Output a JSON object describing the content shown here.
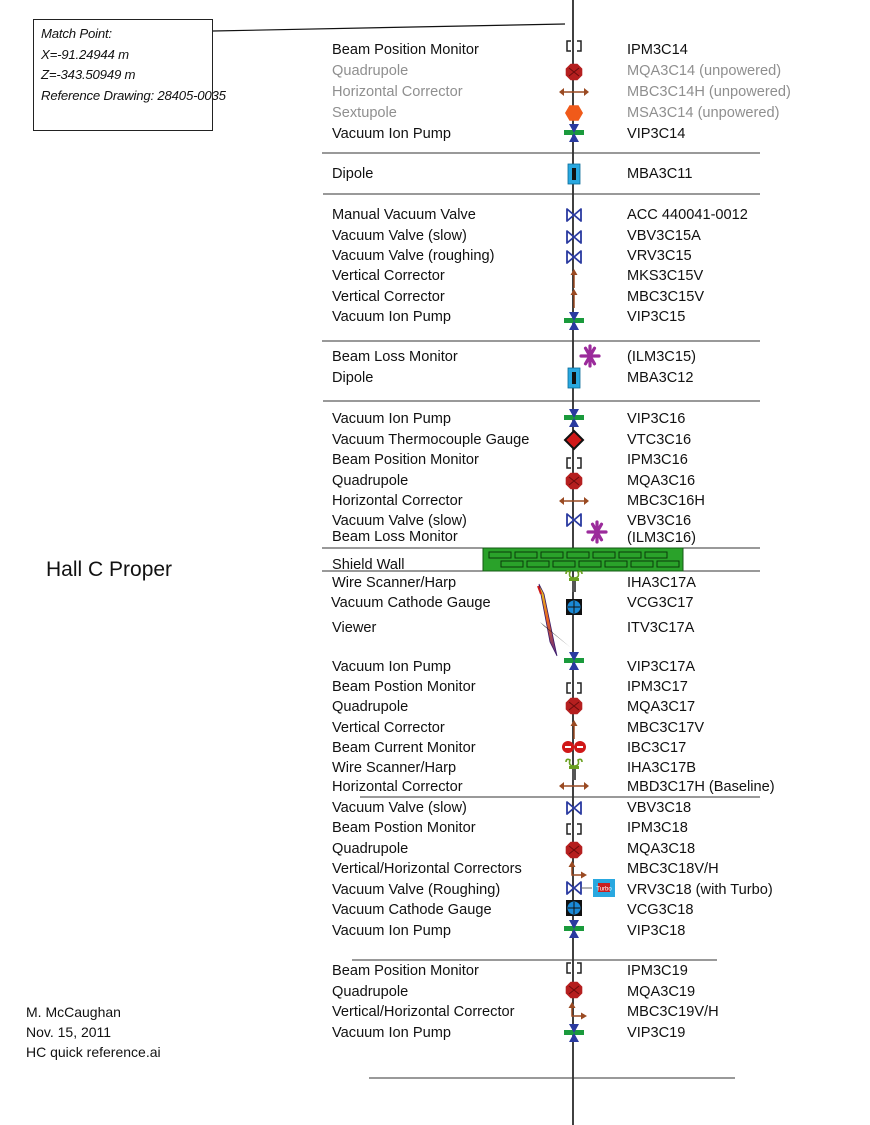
{
  "match_point": {
    "title": "Match Point:",
    "x": "X=-91.24944 m",
    "z": "Z=-343.50949 m",
    "ref": "Reference Drawing: 28405-0035"
  },
  "hall_label": "Hall C Proper",
  "credits": {
    "author": "M. McCaughan",
    "date": "Nov. 15, 2011",
    "file": "HC quick reference.ai"
  },
  "shield_wall_label": "Shield Wall",
  "colors": {
    "quadrupole": "#b51f1f",
    "sextupole": "#f05a1a",
    "pump_green": "#1a9a3c",
    "valve_blue": "#2a3aa0",
    "corrector": "#9a4a22",
    "dipole": "#29a8e0",
    "loss_monitor": "#9b2b9b",
    "shield_wall": "#2aa22a",
    "muted_text": "#8f8f8f"
  },
  "components": [
    {
      "label": "Beam Position Monitor",
      "id": "IPM3C14",
      "icon": "bpm-icon"
    },
    {
      "label": "Quadrupole",
      "id": "MQA3C14 (unpowered)",
      "icon": "quadrupole-icon",
      "muted": true
    },
    {
      "label": "Horizontal Corrector",
      "id": "MBC3C14H (unpowered)",
      "icon": "horizontal-corrector-icon",
      "muted": true
    },
    {
      "label": "Sextupole",
      "id": "MSA3C14 (unpowered)",
      "icon": "sextupole-icon",
      "muted": true
    },
    {
      "label": "Vacuum Ion Pump",
      "id": "VIP3C14",
      "icon": "ion-pump-icon"
    },
    {
      "label": "Dipole",
      "id": "MBA3C11",
      "icon": "dipole-icon"
    },
    {
      "label": "Manual Vacuum Valve",
      "id": "ACC 440041-0012",
      "icon": "valve-icon"
    },
    {
      "label": "Vacuum Valve (slow)",
      "id": "VBV3C15A",
      "icon": "valve-icon"
    },
    {
      "label": "Vacuum Valve (roughing)",
      "id": "VRV3C15",
      "icon": "valve-icon"
    },
    {
      "label": "Vertical Corrector",
      "id": "MKS3C15V",
      "icon": "vertical-corrector-icon"
    },
    {
      "label": "Vertical Corrector",
      "id": "MBC3C15V",
      "icon": "vertical-corrector-icon"
    },
    {
      "label": "Vacuum Ion Pump",
      "id": "VIP3C15",
      "icon": "ion-pump-icon"
    },
    {
      "label": "Beam Loss Monitor",
      "id": "(ILM3C15)",
      "icon": "loss-monitor-icon"
    },
    {
      "label": "Dipole",
      "id": "MBA3C12",
      "icon": "dipole-icon"
    },
    {
      "label": "Vacuum Ion Pump",
      "id": "VIP3C16",
      "icon": "ion-pump-icon"
    },
    {
      "label": "Vacuum Thermocouple Gauge",
      "id": "VTC3C16",
      "icon": "thermocouple-gauge-icon"
    },
    {
      "label": "Beam Position Monitor",
      "id": "IPM3C16",
      "icon": "bpm-icon"
    },
    {
      "label": "Quadrupole",
      "id": "MQA3C16",
      "icon": "quadrupole-icon"
    },
    {
      "label": "Horizontal Corrector",
      "id": "MBC3C16H",
      "icon": "horizontal-corrector-icon"
    },
    {
      "label": "Vacuum Valve (slow)",
      "id": "VBV3C16",
      "icon": "valve-icon"
    },
    {
      "label": "Beam Loss Monitor",
      "id": "(ILM3C16)",
      "icon": "loss-monitor-icon"
    },
    {
      "label": "Wire Scanner/Harp",
      "id": "IHA3C17A",
      "icon": "harp-icon"
    },
    {
      "label": "Vacuum Cathode Gauge",
      "id": "VCG3C17",
      "icon": "cathode-gauge-icon"
    },
    {
      "label": "Viewer",
      "id": "ITV3C17A",
      "icon": "viewer-icon"
    },
    {
      "label": "Vacuum Ion Pump",
      "id": "VIP3C17A",
      "icon": "ion-pump-icon"
    },
    {
      "label": "Beam Postion Monitor",
      "id": "IPM3C17",
      "icon": "bpm-icon"
    },
    {
      "label": "Quadrupole",
      "id": "MQA3C17",
      "icon": "quadrupole-icon"
    },
    {
      "label": "Vertical Corrector",
      "id": "MBC3C17V",
      "icon": "vertical-corrector-icon"
    },
    {
      "label": "Beam Current Monitor",
      "id": "IBC3C17",
      "icon": "current-monitor-icon"
    },
    {
      "label": "Wire Scanner/Harp",
      "id": "IHA3C17B",
      "icon": "harp-icon"
    },
    {
      "label": "Horizontal Corrector",
      "id": "MBD3C17H (Baseline)",
      "icon": "horizontal-corrector-icon"
    },
    {
      "label": "Vacuum Valve (slow)",
      "id": "VBV3C18",
      "icon": "valve-icon"
    },
    {
      "label": "Beam Postion Monitor",
      "id": "IPM3C18",
      "icon": "bpm-icon"
    },
    {
      "label": "Quadrupole",
      "id": "MQA3C18",
      "icon": "quadrupole-icon"
    },
    {
      "label": "Vertical/Horizontal Correctors",
      "id": "MBC3C18V/H",
      "icon": "vh-corrector-icon"
    },
    {
      "label": "Vacuum Valve (Roughing)",
      "id": "VRV3C18 (with Turbo)",
      "icon": "valve-turbo-icon",
      "turbo_label": "Turbo"
    },
    {
      "label": "Vacuum Cathode Gauge",
      "id": "VCG3C18",
      "icon": "cathode-gauge-icon"
    },
    {
      "label": "Vacuum Ion Pump",
      "id": "VIP3C18",
      "icon": "ion-pump-icon"
    },
    {
      "label": "Beam Position Monitor",
      "id": "IPM3C19",
      "icon": "bpm-icon"
    },
    {
      "label": "Quadrupole",
      "id": "MQA3C19",
      "icon": "quadrupole-icon"
    },
    {
      "label": "Vertical/Horizontal Corrector",
      "id": "MBC3C19V/H",
      "icon": "vh-corrector-icon"
    },
    {
      "label": "Vacuum Ion Pump",
      "id": "VIP3C19",
      "icon": "ion-pump-icon"
    }
  ]
}
